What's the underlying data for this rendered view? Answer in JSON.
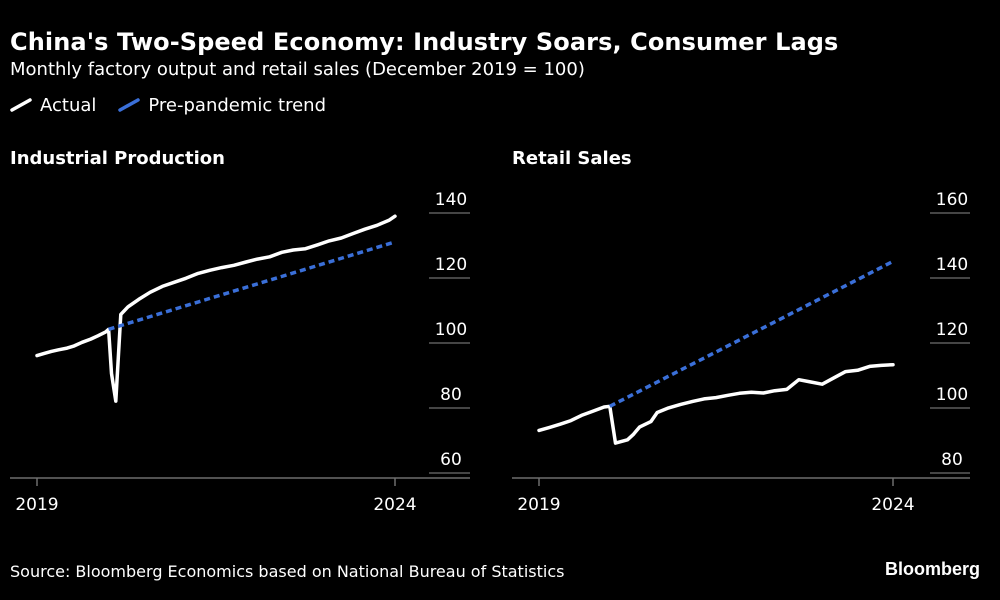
{
  "header": {
    "title": "China's Two-Speed Economy: Industry Soars, Consumer Lags",
    "subtitle": "Monthly factory output and retail sales (December 2019 = 100)"
  },
  "legend": {
    "actual_label": "Actual",
    "trend_label": "Pre-pandemic trend"
  },
  "colors": {
    "background": "#000000",
    "actual": "#ffffff",
    "trend": "#3a6fd8",
    "axis": "#6e6e6e",
    "grid": "#8a8a8a"
  },
  "footer": {
    "source": "Source: Bloomberg Economics based on National Bureau of Statistics",
    "brand": "Bloomberg"
  },
  "chart_data": [
    {
      "type": "line",
      "title": "Industrial Production",
      "x_axis": {
        "range": [
          2019.0,
          2024.0
        ],
        "ticks": [
          2019,
          2024
        ],
        "tick_labels": [
          "2019",
          "2024"
        ]
      },
      "y_axis": {
        "range": [
          60,
          140
        ],
        "ticks": [
          60,
          80,
          100,
          120,
          140
        ],
        "side": "right"
      },
      "series": [
        {
          "name": "Actual",
          "points": [
            [
              2019.0,
              91.5
            ],
            [
              2019.1,
              92.2
            ],
            [
              2019.2,
              92.8
            ],
            [
              2019.3,
              93.3
            ],
            [
              2019.42,
              93.8
            ],
            [
              2019.52,
              94.5
            ],
            [
              2019.63,
              95.6
            ],
            [
              2019.75,
              96.6
            ],
            [
              2019.85,
              97.6
            ],
            [
              2019.96,
              98.8
            ],
            [
              2020.0,
              99.6
            ],
            [
              2020.04,
              86.0
            ],
            [
              2020.1,
              77.5
            ],
            [
              2020.17,
              104.2
            ],
            [
              2020.27,
              106.5
            ],
            [
              2020.42,
              108.8
            ],
            [
              2020.58,
              111.0
            ],
            [
              2020.75,
              112.8
            ],
            [
              2020.92,
              114.1
            ],
            [
              2021.08,
              115.3
            ],
            [
              2021.25,
              116.8
            ],
            [
              2021.42,
              117.8
            ],
            [
              2021.58,
              118.6
            ],
            [
              2021.75,
              119.3
            ],
            [
              2021.92,
              120.3
            ],
            [
              2022.08,
              121.2
            ],
            [
              2022.25,
              121.9
            ],
            [
              2022.42,
              123.3
            ],
            [
              2022.58,
              124.0
            ],
            [
              2022.75,
              124.4
            ],
            [
              2022.92,
              125.6
            ],
            [
              2023.08,
              126.8
            ],
            [
              2023.25,
              127.7
            ],
            [
              2023.42,
              129.1
            ],
            [
              2023.58,
              130.4
            ],
            [
              2023.75,
              131.6
            ],
            [
              2023.92,
              133.2
            ],
            [
              2024.0,
              134.4
            ]
          ]
        },
        {
          "name": "Pre-pandemic trend",
          "points": [
            [
              2020.0,
              99.6
            ],
            [
              2024.0,
              126.5
            ]
          ]
        }
      ]
    },
    {
      "type": "line",
      "title": "Retail Sales",
      "x_axis": {
        "range": [
          2019.0,
          2024.0
        ],
        "ticks": [
          2019,
          2024
        ],
        "tick_labels": [
          "2019",
          "2024"
        ]
      },
      "y_axis": {
        "range": [
          80,
          160
        ],
        "ticks": [
          80,
          100,
          120,
          140,
          160
        ],
        "side": "right"
      },
      "series": [
        {
          "name": "Actual",
          "points": [
            [
              2019.0,
              88.5
            ],
            [
              2019.15,
              89.4
            ],
            [
              2019.3,
              90.4
            ],
            [
              2019.45,
              91.5
            ],
            [
              2019.6,
              93.1
            ],
            [
              2019.75,
              94.3
            ],
            [
              2019.92,
              95.7
            ],
            [
              2020.0,
              95.9
            ],
            [
              2020.08,
              84.6
            ],
            [
              2020.25,
              85.6
            ],
            [
              2020.33,
              87.2
            ],
            [
              2020.42,
              89.5
            ],
            [
              2020.58,
              91.2
            ],
            [
              2020.67,
              94.0
            ],
            [
              2020.83,
              95.4
            ],
            [
              2021.0,
              96.5
            ],
            [
              2021.17,
              97.4
            ],
            [
              2021.33,
              98.2
            ],
            [
              2021.5,
              98.6
            ],
            [
              2021.67,
              99.3
            ],
            [
              2021.83,
              99.9
            ],
            [
              2022.0,
              100.2
            ],
            [
              2022.17,
              100.0
            ],
            [
              2022.33,
              100.7
            ],
            [
              2022.5,
              101.1
            ],
            [
              2022.67,
              104.1
            ],
            [
              2022.83,
              103.4
            ],
            [
              2023.0,
              102.7
            ],
            [
              2023.17,
              104.7
            ],
            [
              2023.33,
              106.6
            ],
            [
              2023.5,
              107.0
            ],
            [
              2023.67,
              108.2
            ],
            [
              2023.83,
              108.5
            ],
            [
              2024.0,
              108.7
            ]
          ]
        },
        {
          "name": "Pre-pandemic trend",
          "points": [
            [
              2020.0,
              95.9
            ],
            [
              2024.0,
              140.5
            ]
          ]
        }
      ]
    }
  ]
}
